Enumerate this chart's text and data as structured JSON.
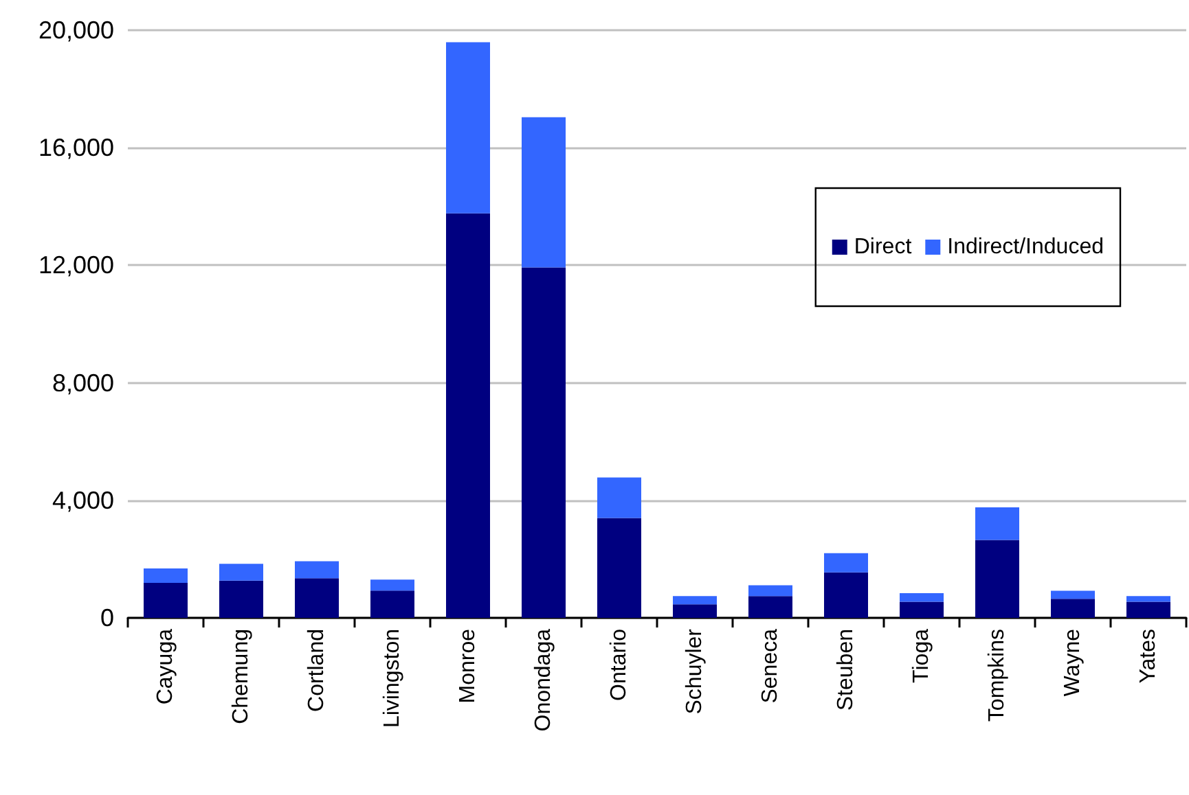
{
  "chart_data": {
    "type": "bar",
    "stacked": true,
    "categories": [
      "Cayuga",
      "Chemung",
      "Cortland",
      "Livingston",
      "Monroe",
      "Onondaga",
      "Ontario",
      "Schuyler",
      "Seneca",
      "Steuben",
      "Tioga",
      "Tompkins",
      "Wayne",
      "Yates"
    ],
    "series": [
      {
        "name": "Direct",
        "color": "#000080",
        "values": [
          1190,
          1270,
          1350,
          930,
          13770,
          11930,
          3400,
          460,
          740,
          1550,
          550,
          2650,
          650,
          550
        ]
      },
      {
        "name": "Indirect/Induced",
        "color": "#3366ff",
        "values": [
          490,
          570,
          580,
          370,
          5820,
          5110,
          1380,
          280,
          370,
          650,
          290,
          1110,
          270,
          190
        ]
      }
    ],
    "ylim": [
      0,
      20000
    ],
    "yticks": [
      {
        "value": 0,
        "label": "0"
      },
      {
        "value": 4000,
        "label": "4,000"
      },
      {
        "value": 8000,
        "label": "8,000"
      },
      {
        "value": 12000,
        "label": "12,000"
      },
      {
        "value": 16000,
        "label": "16,000"
      },
      {
        "value": 20000,
        "label": "20,000"
      }
    ],
    "grid": "y",
    "legend": "top right"
  }
}
